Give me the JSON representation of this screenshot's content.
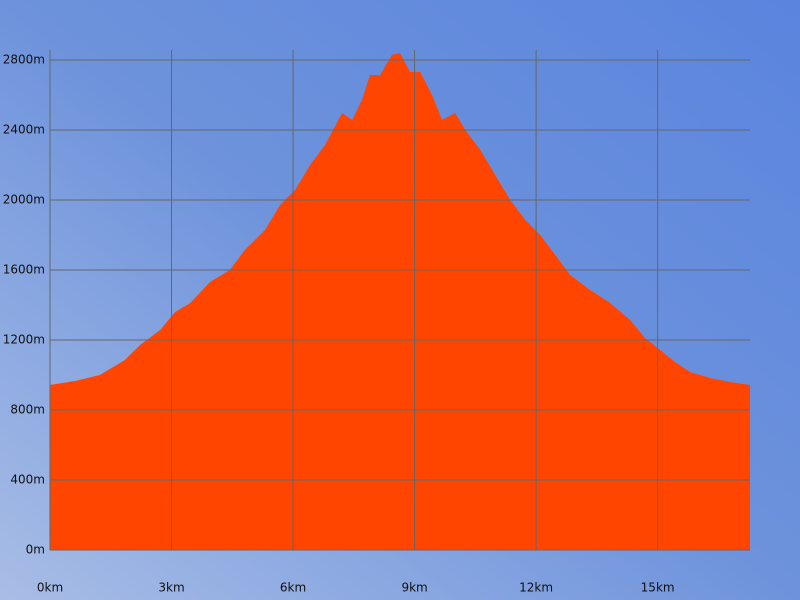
{
  "chart_data": {
    "type": "area",
    "x": [
      0,
      0.62,
      1.23,
      1.85,
      2.22,
      2.72,
      3.09,
      3.46,
      3.95,
      4.44,
      4.81,
      5.31,
      5.68,
      6.05,
      6.42,
      6.79,
      7.21,
      7.46,
      7.7,
      7.9,
      8.15,
      8.44,
      8.64,
      8.89,
      9.14,
      9.43,
      9.68,
      10.0,
      10.25,
      10.62,
      10.99,
      11.36,
      11.73,
      12.1,
      12.47,
      12.84,
      13.33,
      13.83,
      14.32,
      14.69,
      15.06,
      15.43,
      15.8,
      16.3,
      16.79,
      17.28
    ],
    "values": [
      943,
      966,
      1000,
      1086,
      1171,
      1257,
      1360,
      1411,
      1531,
      1600,
      1714,
      1829,
      1971,
      2057,
      2200,
      2314,
      2497,
      2457,
      2571,
      2714,
      2714,
      2829,
      2840,
      2731,
      2731,
      2600,
      2457,
      2497,
      2400,
      2286,
      2143,
      2000,
      1886,
      1800,
      1686,
      1571,
      1486,
      1411,
      1314,
      1211,
      1143,
      1074,
      1017,
      983,
      960,
      943
    ],
    "color": "#ff4500",
    "xlim": [
      0,
      17.28
    ],
    "ylim": [
      0,
      2857
    ],
    "xticks": [
      {
        "value": 0,
        "label": "0km"
      },
      {
        "value": 3,
        "label": "3km"
      },
      {
        "value": 6,
        "label": "6km"
      },
      {
        "value": 9,
        "label": "9km"
      },
      {
        "value": 12,
        "label": "12km"
      },
      {
        "value": 15,
        "label": "15km"
      }
    ],
    "yticks": [
      {
        "value": 0,
        "label": "0m"
      },
      {
        "value": 400,
        "label": "400m"
      },
      {
        "value": 800,
        "label": "800m"
      },
      {
        "value": 1200,
        "label": "1200m"
      },
      {
        "value": 1600,
        "label": "1600m"
      },
      {
        "value": 2000,
        "label": "2000m"
      },
      {
        "value": 2400,
        "label": "2400m"
      },
      {
        "value": 2800,
        "label": "2800m"
      }
    ],
    "grid": true
  }
}
